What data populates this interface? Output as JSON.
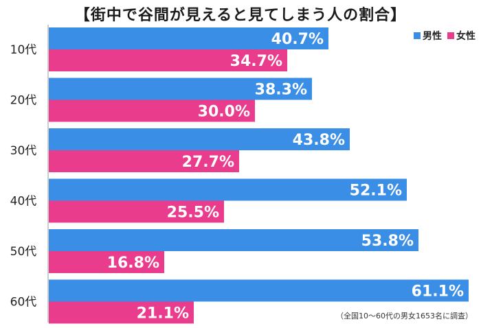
{
  "title": "【街中で谷間が見えると見てしまう人の割合】",
  "footnote": "（全国10～60代の男女1653名に調査）",
  "legend": [
    {
      "label": "男性",
      "color": "#3a8ee6"
    },
    {
      "label": "女性",
      "color": "#ea3c8c"
    }
  ],
  "chart_data": {
    "type": "bar",
    "orientation": "horizontal",
    "title": "【街中で谷間が見えると見てしまう人の割合】",
    "categories": [
      "10代",
      "20代",
      "30代",
      "40代",
      "50代",
      "60代"
    ],
    "series": [
      {
        "name": "男性",
        "values": [
          40.7,
          38.3,
          43.8,
          52.1,
          53.8,
          61.1
        ],
        "color": "#3a8ee6"
      },
      {
        "name": "女性",
        "values": [
          34.7,
          30.0,
          27.7,
          25.5,
          16.8,
          21.1
        ],
        "color": "#ea3c8c"
      }
    ],
    "value_suffix": "%",
    "xlim": [
      0,
      62
    ],
    "grid": false,
    "legend_position": "top-right"
  }
}
